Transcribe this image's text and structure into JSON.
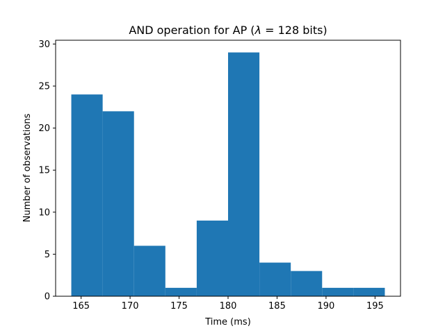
{
  "chart_data": {
    "type": "bar",
    "subtype": "histogram",
    "title_prefix": "AND operation for AP (",
    "title_lambda": "λ",
    "title_suffix": " = 128 bits)",
    "xlabel": "Time (ms)",
    "ylabel": "Number of observations",
    "bin_edges": [
      164.0,
      167.2,
      170.4,
      173.6,
      176.8,
      180.0,
      183.2,
      186.4,
      189.6,
      192.8,
      196.0
    ],
    "values": [
      24,
      22,
      6,
      1,
      9,
      29,
      4,
      3,
      1,
      1
    ],
    "xlim": [
      162.4,
      197.6
    ],
    "ylim": [
      0,
      30.45
    ],
    "xticks": [
      165,
      170,
      175,
      180,
      185,
      190,
      195
    ],
    "yticks": [
      0,
      5,
      10,
      15,
      20,
      25,
      30
    ],
    "bar_color": "#1f77b4",
    "grid": false,
    "legend": "none"
  }
}
